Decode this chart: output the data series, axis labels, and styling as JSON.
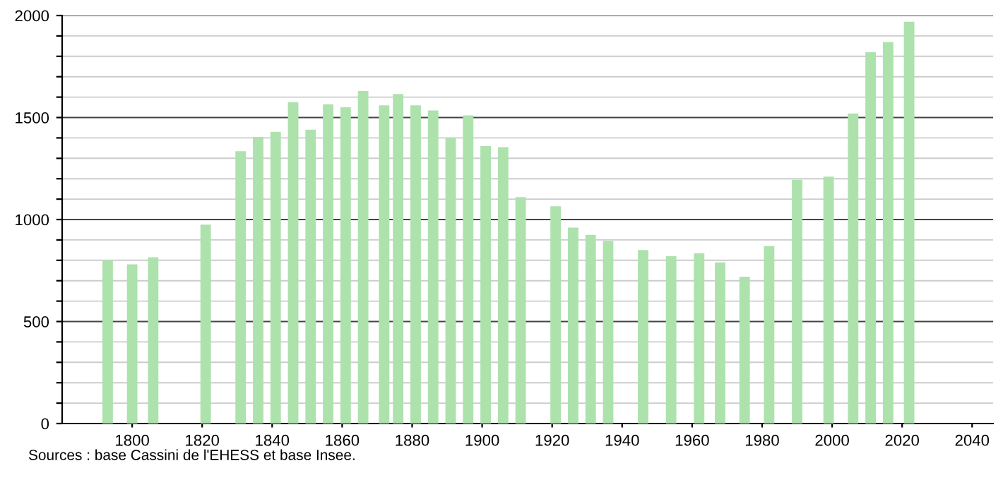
{
  "chart_data": {
    "type": "bar",
    "annotations": [
      "Sources : base Cassini de l'EHESS et base Insee."
    ],
    "x": [
      1793,
      1800,
      1806,
      1821,
      1831,
      1836,
      1841,
      1846,
      1851,
      1856,
      1861,
      1866,
      1872,
      1876,
      1881,
      1886,
      1891,
      1896,
      1901,
      1906,
      1911,
      1921,
      1926,
      1931,
      1936,
      1946,
      1954,
      1962,
      1968,
      1975,
      1982,
      1990,
      1999,
      2006,
      2011,
      2016,
      2022
    ],
    "values": [
      800,
      780,
      815,
      975,
      1335,
      1405,
      1430,
      1575,
      1440,
      1565,
      1550,
      1630,
      1560,
      1615,
      1560,
      1535,
      1400,
      1510,
      1360,
      1355,
      1110,
      1065,
      960,
      925,
      895,
      850,
      820,
      835,
      790,
      720,
      870,
      1195,
      1210,
      1520,
      1820,
      1870,
      1970
    ],
    "color": "#ade2ad",
    "xlim": [
      1780,
      2046
    ],
    "xticks": [
      1800,
      1820,
      1840,
      1860,
      1880,
      1900,
      1920,
      1940,
      1960,
      1980,
      2000,
      2020,
      2040
    ],
    "ylim": [
      0,
      2000
    ],
    "yticks": [
      0,
      {
        "value": 100,
        "label": null
      },
      {
        "value": 200,
        "label": null
      },
      {
        "value": 300,
        "label": null
      },
      {
        "value": 400,
        "label": null
      },
      500,
      {
        "value": 600,
        "label": null
      },
      {
        "value": 700,
        "label": null
      },
      {
        "value": 800,
        "label": null
      },
      {
        "value": 900,
        "label": null
      },
      1000,
      {
        "value": 1100,
        "label": null
      },
      {
        "value": 1200,
        "label": null
      },
      {
        "value": 1300,
        "label": null
      },
      {
        "value": 1400,
        "label": null
      },
      1500,
      {
        "value": 1600,
        "label": null
      },
      {
        "value": 1700,
        "label": null
      },
      {
        "value": 1800,
        "label": null
      },
      {
        "value": 1900,
        "label": null
      },
      2000
    ],
    "grid": "y"
  }
}
